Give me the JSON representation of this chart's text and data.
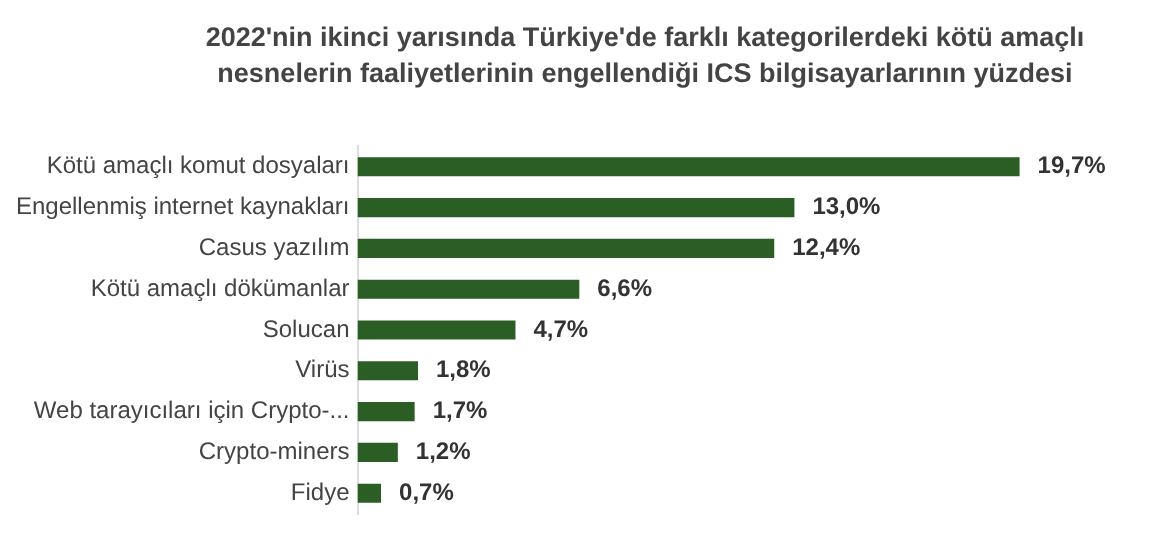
{
  "chart_data": {
    "type": "bar",
    "orientation": "horizontal",
    "title": "2022'nin ikinci yarısında Türkiye'de farklı kategorilerdeki kötü amaçlı nesnelerin faaliyetlerinin engellendiği ICS bilgisayarlarının yüzdesi",
    "categories": [
      "Kötü amaçlı komut dosyaları",
      "Engellenmiş internet kaynakları",
      "Casus yazılım",
      "Kötü amaçlı dökümanlar",
      "Solucan",
      "Virüs",
      "Web tarayıcıları için Crypto-...",
      "Crypto-miners",
      "Fidye"
    ],
    "values": [
      19.7,
      13.0,
      12.4,
      6.6,
      4.7,
      1.8,
      1.7,
      1.2,
      0.7
    ],
    "value_labels": [
      "19,7%",
      "13,0%",
      "12,4%",
      "6,6%",
      "4,7%",
      "1,8%",
      "1,7%",
      "1,2%",
      "0,7%"
    ],
    "color": "#2a5e24"
  }
}
